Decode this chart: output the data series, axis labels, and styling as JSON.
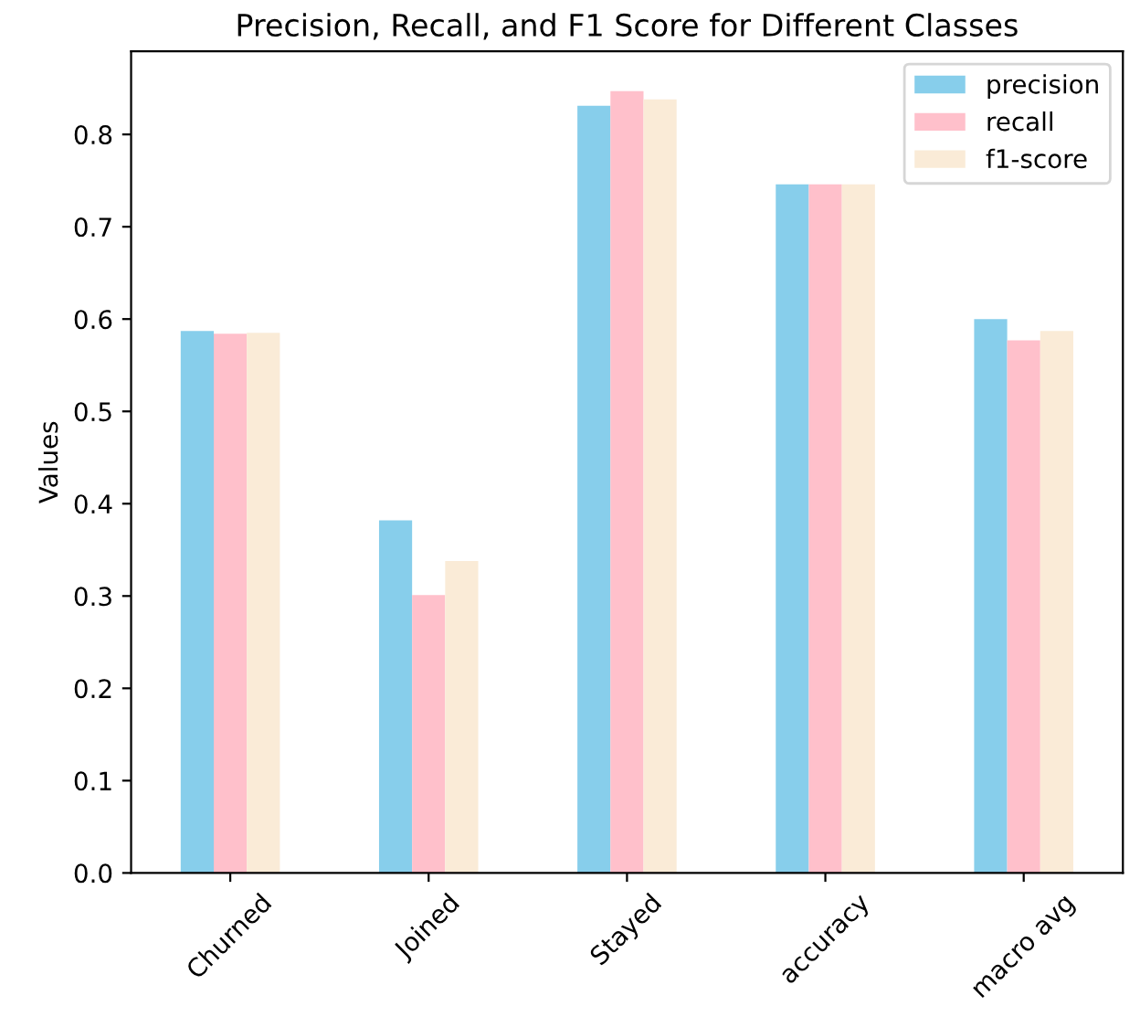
{
  "chart_data": {
    "type": "bar",
    "title": "Precision, Recall, and F1 Score for Different Classes",
    "ylabel": "Values",
    "categories": [
      "Churned",
      "Joined",
      "Stayed",
      "accuracy",
      "macro avg"
    ],
    "series": [
      {
        "name": "precision",
        "color": "#87ceeb",
        "values": [
          0.587,
          0.382,
          0.831,
          0.746,
          0.6
        ]
      },
      {
        "name": "recall",
        "color": "#ffc0cb",
        "values": [
          0.584,
          0.301,
          0.847,
          0.746,
          0.577
        ]
      },
      {
        "name": "f1-score",
        "color": "#faebd7",
        "values": [
          0.585,
          0.338,
          0.838,
          0.746,
          0.587
        ]
      }
    ],
    "ylim": [
      0,
      0.89
    ],
    "yticks": [
      {
        "value": 0,
        "label": "0.0"
      },
      0.1,
      0.2,
      0.3,
      0.4,
      0.5,
      0.6,
      0.7,
      0.8
    ],
    "grid": false,
    "legend": "top right"
  }
}
